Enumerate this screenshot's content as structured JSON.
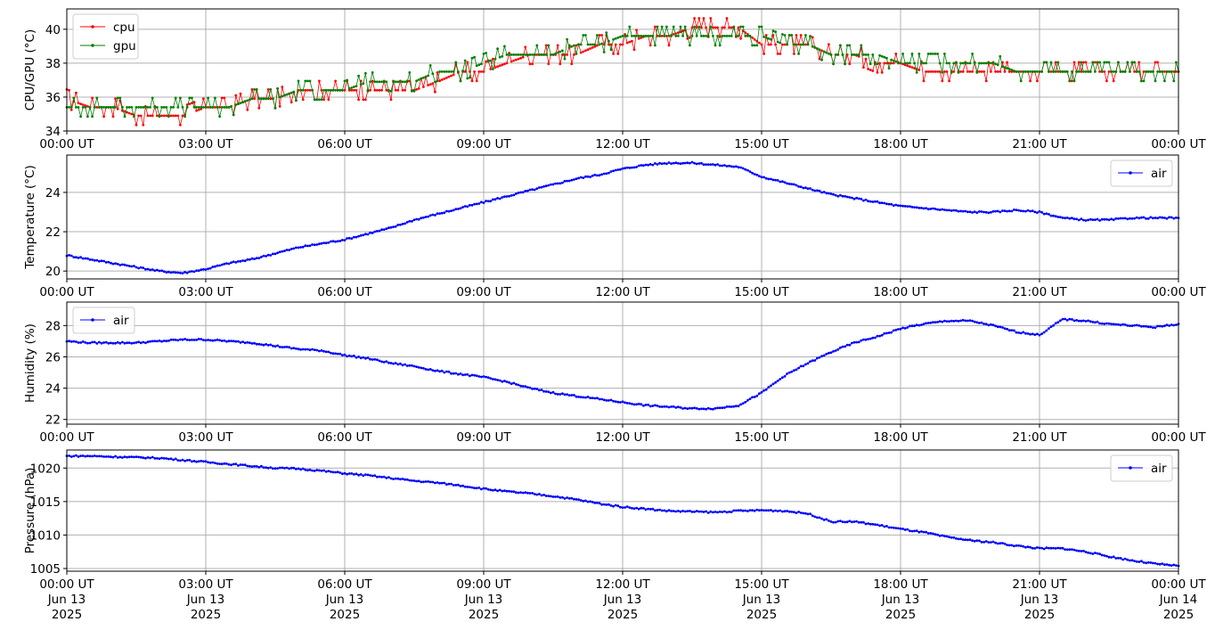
{
  "chart_data": [
    {
      "type": "line",
      "ylabel": "CPU/GPU (°C)",
      "ylim": [
        34,
        41.2
      ],
      "yticks": [
        34,
        36,
        38,
        40
      ],
      "xlim": [
        "2025-06-13T00:00Z",
        "2025-06-14T00:00Z"
      ],
      "xtick_labels": [
        "00:00 UT",
        "03:00 UT",
        "06:00 UT",
        "09:00 UT",
        "12:00 UT",
        "15:00 UT",
        "18:00 UT",
        "21:00 UT",
        "00:00 UT"
      ],
      "grid": true,
      "legend_position": "upper-left",
      "series": [
        {
          "name": "cpu",
          "color": "#ff0000",
          "x_hours": [
            0,
            0.5,
            1,
            1.5,
            2,
            2.5,
            3,
            3.5,
            4,
            4.5,
            5,
            5.5,
            6,
            6.5,
            7,
            7.5,
            8,
            8.5,
            9,
            9.5,
            10,
            10.5,
            11,
            11.5,
            12,
            12.5,
            13,
            13.5,
            14,
            14.5,
            15,
            15.5,
            16,
            16.5,
            17,
            17.5,
            18,
            18.5,
            19,
            19.5,
            20,
            20.5,
            21,
            21.5,
            22,
            22.5,
            23,
            23.5,
            24
          ],
          "values": [
            35.9,
            35.4,
            35.4,
            34.9,
            34.9,
            34.9,
            35.4,
            35.4,
            35.9,
            35.9,
            36.4,
            36.4,
            36.4,
            36.4,
            36.4,
            36.4,
            36.9,
            37.5,
            37.5,
            38.0,
            38.5,
            38.5,
            38.5,
            39.1,
            39.1,
            39.6,
            39.6,
            40.1,
            40.1,
            40.1,
            39.1,
            39.1,
            39.1,
            38.5,
            38.5,
            38.0,
            38.0,
            37.5,
            37.5,
            37.5,
            37.5,
            37.5,
            37.5,
            37.5,
            37.5,
            37.5,
            37.5,
            37.5,
            37.5
          ]
        },
        {
          "name": "gpu",
          "color": "#008000",
          "x_hours": [
            0,
            0.5,
            1,
            1.5,
            2,
            2.5,
            3,
            3.5,
            4,
            4.5,
            5,
            5.5,
            6,
            6.5,
            7,
            7.5,
            8,
            8.5,
            9,
            9.5,
            10,
            10.5,
            11,
            11.5,
            12,
            12.5,
            13,
            13.5,
            14,
            14.5,
            15,
            15.5,
            16,
            16.5,
            17,
            17.5,
            18,
            18.5,
            19,
            19.5,
            20,
            20.5,
            21,
            21.5,
            22,
            22.5,
            23,
            23.5,
            24
          ],
          "values": [
            35.4,
            35.4,
            35.4,
            35.4,
            35.4,
            35.4,
            35.4,
            35.4,
            35.9,
            35.9,
            36.4,
            36.4,
            36.4,
            36.9,
            36.9,
            36.9,
            37.5,
            37.5,
            38.0,
            38.5,
            38.5,
            38.5,
            39.1,
            39.1,
            39.6,
            39.6,
            39.6,
            39.6,
            39.6,
            39.6,
            39.6,
            39.1,
            39.1,
            38.5,
            38.5,
            38.5,
            38.0,
            38.0,
            38.0,
            38.0,
            38.0,
            37.5,
            37.5,
            37.5,
            37.5,
            37.5,
            37.5,
            37.5,
            37.5
          ]
        }
      ]
    },
    {
      "type": "line",
      "ylabel": "Temperature (°C)",
      "ylim": [
        19.6,
        25.9
      ],
      "yticks": [
        20,
        22,
        24
      ],
      "xlim": [
        "2025-06-13T00:00Z",
        "2025-06-14T00:00Z"
      ],
      "xtick_labels": [
        "00:00 UT",
        "03:00 UT",
        "06:00 UT",
        "09:00 UT",
        "12:00 UT",
        "15:00 UT",
        "18:00 UT",
        "21:00 UT",
        "00:00 UT"
      ],
      "grid": true,
      "legend_position": "upper-right",
      "series": [
        {
          "name": "air",
          "color": "#0000ff",
          "x_hours": [
            0,
            0.5,
            1,
            1.5,
            2,
            2.5,
            3,
            3.5,
            4,
            4.5,
            5,
            5.5,
            6,
            6.5,
            7,
            7.5,
            8,
            8.5,
            9,
            9.5,
            10,
            10.5,
            11,
            11.5,
            12,
            12.5,
            13,
            13.5,
            14,
            14.5,
            15,
            15.5,
            16,
            16.5,
            17,
            17.5,
            18,
            18.5,
            19,
            19.5,
            20,
            20.5,
            21,
            21.5,
            22,
            22.5,
            23,
            23.5,
            24
          ],
          "values": [
            20.8,
            20.6,
            20.4,
            20.2,
            20.0,
            19.9,
            20.1,
            20.4,
            20.6,
            20.9,
            21.2,
            21.4,
            21.6,
            21.9,
            22.2,
            22.6,
            22.9,
            23.2,
            23.5,
            23.8,
            24.1,
            24.4,
            24.7,
            24.9,
            25.2,
            25.4,
            25.5,
            25.5,
            25.4,
            25.3,
            24.8,
            24.5,
            24.2,
            23.9,
            23.7,
            23.5,
            23.3,
            23.2,
            23.1,
            23.0,
            23.0,
            23.1,
            23.0,
            22.7,
            22.6,
            22.6,
            22.7,
            22.7,
            22.7
          ]
        }
      ]
    },
    {
      "type": "line",
      "ylabel": "Humidity (%)",
      "ylim": [
        21.7,
        29.5
      ],
      "yticks": [
        22,
        24,
        26,
        28
      ],
      "xlim": [
        "2025-06-13T00:00Z",
        "2025-06-14T00:00Z"
      ],
      "xtick_labels": [
        "00:00 UT",
        "03:00 UT",
        "06:00 UT",
        "09:00 UT",
        "12:00 UT",
        "15:00 UT",
        "18:00 UT",
        "21:00 UT",
        "00:00 UT"
      ],
      "grid": true,
      "legend_position": "upper-left",
      "series": [
        {
          "name": "air",
          "color": "#0000ff",
          "x_hours": [
            0,
            0.5,
            1,
            1.5,
            2,
            2.5,
            3,
            3.5,
            4,
            4.5,
            5,
            5.5,
            6,
            6.5,
            7,
            7.5,
            8,
            8.5,
            9,
            9.5,
            10,
            10.5,
            11,
            11.5,
            12,
            12.5,
            13,
            13.5,
            14,
            14.5,
            15,
            15.5,
            16,
            16.5,
            17,
            17.5,
            18,
            18.5,
            19,
            19.5,
            20,
            20.5,
            21,
            21.5,
            22,
            22.5,
            23,
            23.5,
            24
          ],
          "values": [
            27.0,
            26.9,
            26.9,
            26.9,
            27.0,
            27.1,
            27.1,
            27.0,
            26.9,
            26.7,
            26.5,
            26.4,
            26.1,
            25.9,
            25.6,
            25.4,
            25.1,
            24.9,
            24.7,
            24.4,
            24.0,
            23.7,
            23.5,
            23.3,
            23.1,
            22.9,
            22.8,
            22.7,
            22.7,
            22.9,
            23.7,
            24.8,
            25.6,
            26.3,
            26.9,
            27.3,
            27.8,
            28.1,
            28.3,
            28.3,
            28.0,
            27.6,
            27.4,
            28.4,
            28.3,
            28.1,
            28.0,
            27.9,
            28.1
          ]
        }
      ]
    },
    {
      "type": "line",
      "ylabel": "Pressure (hPa)",
      "ylim": [
        1004.6,
        1022.7
      ],
      "yticks": [
        1005,
        1010,
        1015,
        1020
      ],
      "xlim": [
        "2025-06-13T00:00Z",
        "2025-06-14T00:00Z"
      ],
      "xtick_labels": [
        "00:00 UT\nJun 13\n2025",
        "03:00 UT\nJun 13\n2025",
        "06:00 UT\nJun 13\n2025",
        "09:00 UT\nJun 13\n2025",
        "12:00 UT\nJun 13\n2025",
        "15:00 UT\nJun 13\n2025",
        "18:00 UT\nJun 13\n2025",
        "21:00 UT\nJun 13\n2025",
        "00:00 UT\nJun 14\n2025"
      ],
      "grid": true,
      "legend_position": "upper-right",
      "series": [
        {
          "name": "air",
          "color": "#0000ff",
          "x_hours": [
            0,
            0.5,
            1,
            1.5,
            2,
            2.5,
            3,
            3.5,
            4,
            4.5,
            5,
            5.5,
            6,
            6.5,
            7,
            7.5,
            8,
            8.5,
            9,
            9.5,
            10,
            10.5,
            11,
            11.5,
            12,
            12.5,
            13,
            13.5,
            14,
            14.5,
            15,
            15.5,
            16,
            16.5,
            17,
            17.5,
            18,
            18.5,
            19,
            19.5,
            20,
            20.5,
            21,
            21.5,
            22,
            22.5,
            23,
            23.5,
            24
          ],
          "values": [
            1021.8,
            1021.8,
            1021.7,
            1021.6,
            1021.5,
            1021.2,
            1020.9,
            1020.6,
            1020.3,
            1020.0,
            1019.9,
            1019.6,
            1019.2,
            1018.9,
            1018.5,
            1018.1,
            1017.8,
            1017.4,
            1016.9,
            1016.5,
            1016.2,
            1015.8,
            1015.3,
            1014.7,
            1014.2,
            1013.9,
            1013.6,
            1013.5,
            1013.4,
            1013.6,
            1013.7,
            1013.6,
            1013.2,
            1012.0,
            1012.0,
            1011.5,
            1010.9,
            1010.4,
            1009.7,
            1009.2,
            1008.9,
            1008.4,
            1008.0,
            1008.0,
            1007.5,
            1006.8,
            1006.2,
            1005.7,
            1005.4
          ]
        }
      ]
    }
  ]
}
